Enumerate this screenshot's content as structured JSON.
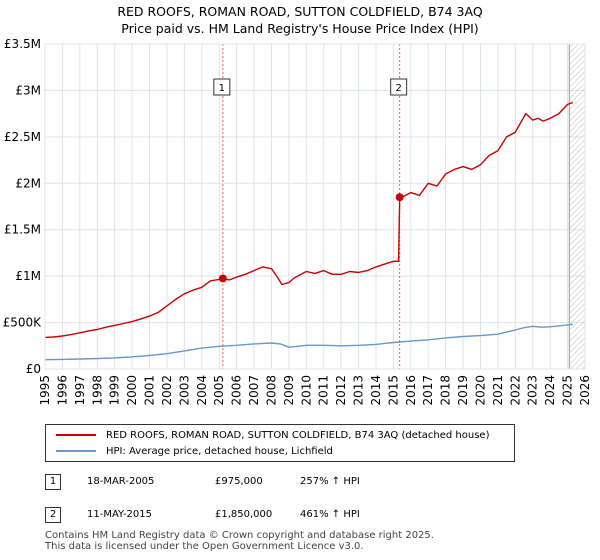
{
  "title_line1": "RED ROOFS, ROMAN ROAD, SUTTON COLDFIELD, B74 3AQ",
  "title_line2": "Price paid vs. HM Land Registry's House Price Index (HPI)",
  "colors": {
    "property": "#cc0000",
    "hpi": "#6699cc",
    "grid": "#dde3ec",
    "bg": "#ffffff",
    "marker_line": "#cc0000"
  },
  "chart_data": {
    "type": "line",
    "title": "Price paid vs. HM Land Registry's House Price Index (HPI)",
    "xlim": [
      1995,
      2026
    ],
    "ylim": [
      0,
      3500000
    ],
    "x_ticks": [
      1995,
      1996,
      1997,
      1998,
      1999,
      2000,
      2001,
      2002,
      2003,
      2004,
      2005,
      2006,
      2007,
      2008,
      2009,
      2010,
      2011,
      2012,
      2013,
      2014,
      2015,
      2016,
      2017,
      2018,
      2019,
      2020,
      2021,
      2022,
      2023,
      2024,
      2025,
      2026
    ],
    "y_ticks": [
      0,
      500000,
      1000000,
      1500000,
      2000000,
      2500000,
      3000000,
      3500000
    ],
    "y_tick_labels": [
      "£0",
      "£500K",
      "£1M",
      "£1.5M",
      "£2M",
      "£2.5M",
      "£3M",
      "£3.5M"
    ],
    "forecast_start": 2025.1,
    "series": [
      {
        "name": "RED ROOFS, ROMAN ROAD, SUTTON COLDFIELD, B74 3AQ (detached house)",
        "x": [
          1995,
          1995.5,
          1996,
          1996.5,
          1997,
          1997.5,
          1998,
          1998.5,
          1999,
          1999.5,
          2000,
          2000.5,
          2001,
          2001.5,
          2002,
          2002.5,
          2003,
          2003.5,
          2004,
          2004.5,
          2005,
          2005.21,
          2005.6,
          2006,
          2006.5,
          2007,
          2007.5,
          2008,
          2008.3,
          2008.6,
          2009,
          2009.3,
          2009.6,
          2010,
          2010.5,
          2011,
          2011.5,
          2012,
          2012.5,
          2013,
          2013.5,
          2014,
          2014.5,
          2015,
          2015.3,
          2015.36,
          2015.6,
          2016,
          2016.5,
          2017,
          2017.5,
          2018,
          2018.5,
          2019,
          2019.5,
          2020,
          2020.5,
          2021,
          2021.5,
          2022,
          2022.3,
          2022.6,
          2023,
          2023.3,
          2023.6,
          2024,
          2024.5,
          2025,
          2025.3
        ],
        "y": [
          340000,
          345000,
          355000,
          370000,
          390000,
          410000,
          425000,
          450000,
          470000,
          490000,
          510000,
          540000,
          570000,
          610000,
          680000,
          750000,
          810000,
          850000,
          880000,
          950000,
          965000,
          975000,
          960000,
          990000,
          1020000,
          1060000,
          1100000,
          1080000,
          1000000,
          910000,
          930000,
          980000,
          1010000,
          1050000,
          1030000,
          1060000,
          1020000,
          1020000,
          1050000,
          1040000,
          1060000,
          1100000,
          1130000,
          1160000,
          1160000,
          1850000,
          1860000,
          1900000,
          1870000,
          2000000,
          1970000,
          2100000,
          2150000,
          2180000,
          2150000,
          2200000,
          2300000,
          2350000,
          2500000,
          2550000,
          2650000,
          2750000,
          2680000,
          2700000,
          2670000,
          2700000,
          2750000,
          2850000,
          2870000
        ]
      },
      {
        "name": "HPI: Average price, detached house, Lichfield",
        "x": [
          1995,
          1996,
          1997,
          1998,
          1999,
          2000,
          2001,
          2002,
          2003,
          2004,
          2005,
          2006,
          2007,
          2008,
          2008.5,
          2009,
          2009.5,
          2010,
          2011,
          2012,
          2013,
          2014,
          2015,
          2016,
          2017,
          2018,
          2019,
          2020,
          2021,
          2022,
          2022.5,
          2023,
          2023.5,
          2024,
          2025,
          2025.3
        ],
        "y": [
          100000,
          103000,
          108000,
          113000,
          120000,
          130000,
          145000,
          165000,
          195000,
          225000,
          245000,
          255000,
          270000,
          280000,
          270000,
          235000,
          245000,
          255000,
          255000,
          250000,
          255000,
          265000,
          285000,
          300000,
          315000,
          335000,
          350000,
          360000,
          375000,
          420000,
          445000,
          460000,
          450000,
          455000,
          475000,
          480000
        ]
      }
    ],
    "sales": [
      {
        "label": "1",
        "year": 2005.21,
        "price": 975000
      },
      {
        "label": "2",
        "year": 2015.36,
        "price": 1850000
      }
    ]
  },
  "legend": {
    "property": "RED ROOFS, ROMAN ROAD, SUTTON COLDFIELD, B74 3AQ (detached house)",
    "hpi": "HPI: Average price, detached house, Lichfield"
  },
  "sales_table": [
    {
      "label": "1",
      "date": "18-MAR-2005",
      "price": "£975,000",
      "hpi": "257% ↑ HPI"
    },
    {
      "label": "2",
      "date": "11-MAY-2015",
      "price": "£1,850,000",
      "hpi": "461% ↑ HPI"
    }
  ],
  "footer_line1": "Contains HM Land Registry data © Crown copyright and database right 2025.",
  "footer_line2": "This data is licensed under the Open Government Licence v3.0."
}
